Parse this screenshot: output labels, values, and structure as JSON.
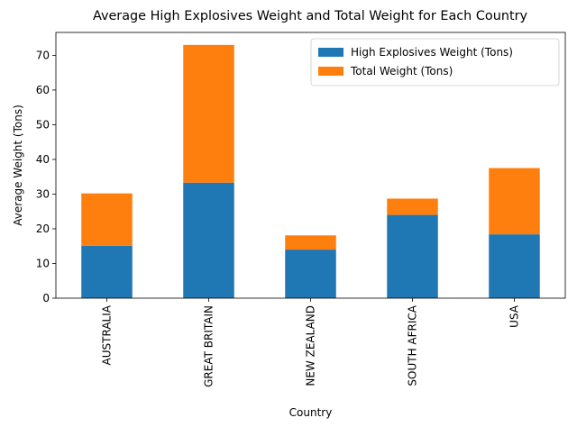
{
  "chart_data": {
    "type": "bar",
    "stacked": true,
    "title": "Average High Explosives Weight and Total Weight for Each Country",
    "xlabel": "Country",
    "ylabel": "Average Weight (Tons)",
    "categories": [
      "AUSTRALIA",
      "GREAT BRITAIN",
      "NEW ZEALAND",
      "SOUTH AFRICA",
      "USA"
    ],
    "series": [
      {
        "name": "High Explosives Weight (Tons)",
        "values": [
          15.1,
          33.3,
          14.0,
          24.0,
          18.4
        ],
        "color": "#1f77b4"
      },
      {
        "name": "Total Weight (Tons)",
        "values": [
          15.1,
          39.7,
          4.1,
          4.7,
          19.1
        ],
        "color": "#ff7f0e"
      }
    ],
    "ylim": [
      0,
      76.6
    ],
    "yticks": [
      0,
      10,
      20,
      30,
      40,
      50,
      60,
      70
    ],
    "grid": false,
    "legend_position": "top-right"
  }
}
